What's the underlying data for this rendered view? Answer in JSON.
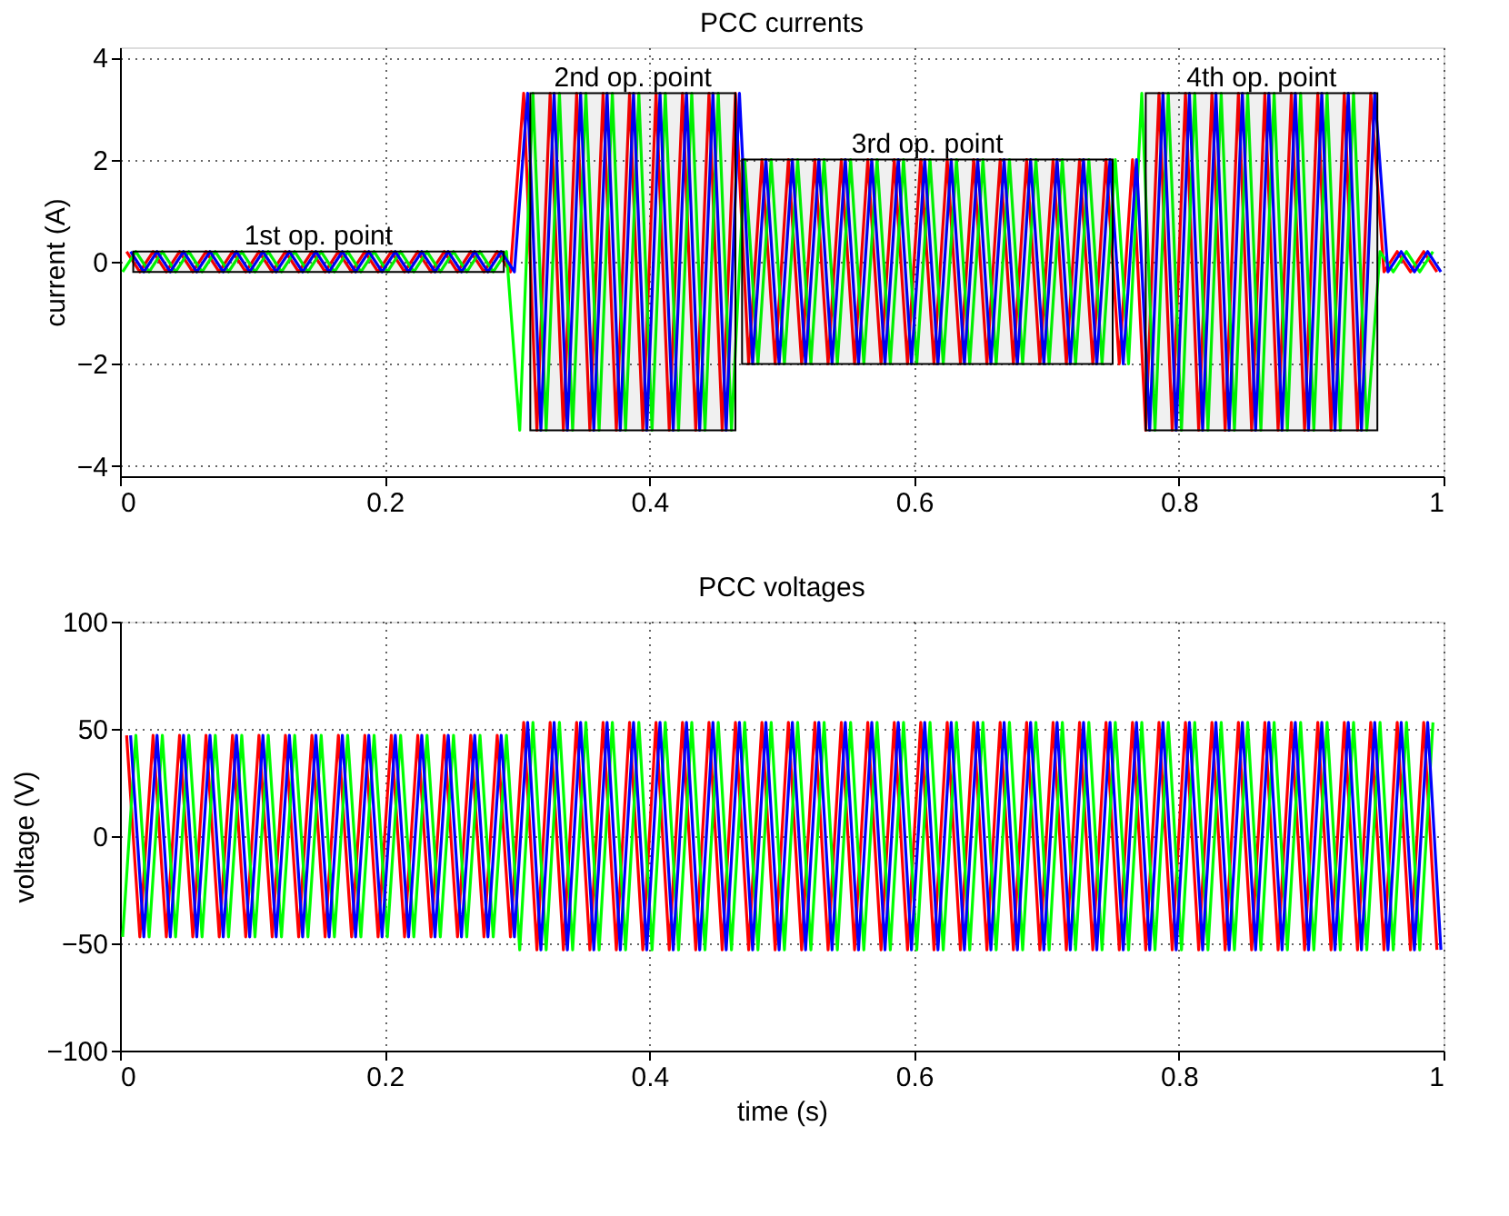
{
  "chart_data": [
    {
      "type": "line",
      "title": "PCC currents",
      "ylabel": "current (A)",
      "xlim": [
        0,
        1
      ],
      "xticks": [
        0,
        0.2,
        0.4,
        0.6,
        0.8,
        1
      ],
      "ylim": [
        -4.2,
        4.2
      ],
      "yticks": [
        -4,
        -2,
        0,
        2,
        4
      ],
      "grid": true,
      "bands": [
        {
          "axis": "x",
          "from": 0.01,
          "to": 0.29,
          "label": "1st op. point"
        },
        {
          "axis": "x",
          "from": 0.31,
          "to": 0.465,
          "label": "2nd op. point"
        },
        {
          "axis": "x",
          "from": 0.47,
          "to": 0.75,
          "label": "3rd op. point"
        },
        {
          "axis": "x",
          "from": 0.775,
          "to": 0.95,
          "label": "4th op. point"
        }
      ],
      "series": [
        {
          "color": "#ff0000",
          "x": [
            0.005,
            0.015,
            0.025,
            0.035,
            0.045,
            0.055,
            0.065,
            0.075,
            0.085,
            0.095,
            0.105,
            0.115,
            0.125,
            0.135,
            0.145,
            0.155,
            0.165,
            0.175,
            0.185,
            0.195,
            0.205,
            0.215,
            0.225,
            0.235,
            0.245,
            0.255,
            0.265,
            0.275,
            0.285,
            0.295,
            0.305,
            0.315,
            0.325,
            0.335,
            0.345,
            0.355,
            0.365,
            0.375,
            0.385,
            0.395,
            0.405,
            0.415,
            0.425,
            0.435,
            0.445,
            0.455,
            0.465,
            0.475,
            0.485,
            0.495,
            0.505,
            0.515,
            0.525,
            0.535,
            0.545,
            0.555,
            0.565,
            0.575,
            0.585,
            0.595,
            0.605,
            0.615,
            0.625,
            0.635,
            0.645,
            0.655,
            0.665,
            0.675,
            0.685,
            0.695,
            0.705,
            0.715,
            0.725,
            0.735,
            0.745,
            0.755,
            0.765,
            0.775,
            0.785,
            0.795,
            0.805,
            0.815,
            0.825,
            0.835,
            0.845,
            0.855,
            0.865,
            0.875,
            0.885,
            0.895,
            0.905,
            0.915,
            0.925,
            0.935,
            0.945,
            0.955,
            0.965,
            0.975,
            0.985,
            0.995
          ],
          "values": [
            0.2,
            -0.2,
            0.2,
            -0.2,
            0.2,
            -0.2,
            0.2,
            -0.2,
            0.2,
            -0.2,
            0.2,
            -0.2,
            0.2,
            -0.2,
            0.2,
            -0.2,
            0.2,
            -0.2,
            0.2,
            -0.2,
            0.2,
            -0.2,
            0.2,
            -0.2,
            0.2,
            -0.2,
            0.2,
            -0.2,
            0.2,
            -0.2,
            3.3,
            -3.3,
            3.3,
            -3.3,
            3.3,
            -3.3,
            3.3,
            -3.3,
            3.3,
            -3.3,
            3.3,
            -3.3,
            3.3,
            -3.3,
            3.3,
            -3.3,
            3.3,
            -2,
            2,
            -2,
            2,
            -2,
            2,
            -2,
            2,
            -2,
            2,
            -2,
            2,
            -2,
            2,
            -2,
            2,
            -2,
            2,
            -2,
            2,
            -2,
            2,
            -2,
            2,
            -2,
            2,
            -2,
            2,
            -2,
            2,
            -3.3,
            3.3,
            -3.3,
            3.3,
            -3.3,
            3.3,
            -3.3,
            3.3,
            -3.3,
            3.3,
            -3.3,
            3.3,
            -3.3,
            3.3,
            -3.3,
            3.3,
            -3.3,
            3.3,
            -0.2,
            0.2,
            -0.2,
            0.2,
            -0.2
          ]
        },
        {
          "color": "#00ff00",
          "x": [
            0.002,
            0.012,
            0.022,
            0.032,
            0.042,
            0.052,
            0.062,
            0.072,
            0.082,
            0.092,
            0.102,
            0.112,
            0.122,
            0.132,
            0.142,
            0.152,
            0.162,
            0.172,
            0.182,
            0.192,
            0.202,
            0.212,
            0.222,
            0.232,
            0.242,
            0.252,
            0.262,
            0.272,
            0.282,
            0.292,
            0.302,
            0.312,
            0.322,
            0.332,
            0.342,
            0.352,
            0.362,
            0.372,
            0.382,
            0.392,
            0.402,
            0.412,
            0.422,
            0.432,
            0.442,
            0.452,
            0.462,
            0.472,
            0.482,
            0.492,
            0.502,
            0.512,
            0.522,
            0.532,
            0.542,
            0.552,
            0.562,
            0.572,
            0.582,
            0.592,
            0.602,
            0.612,
            0.622,
            0.632,
            0.642,
            0.652,
            0.662,
            0.672,
            0.682,
            0.692,
            0.702,
            0.712,
            0.722,
            0.732,
            0.742,
            0.752,
            0.762,
            0.772,
            0.782,
            0.792,
            0.802,
            0.812,
            0.822,
            0.832,
            0.842,
            0.852,
            0.862,
            0.872,
            0.882,
            0.892,
            0.902,
            0.912,
            0.922,
            0.932,
            0.942,
            0.952,
            0.962,
            0.972,
            0.982,
            0.992
          ],
          "values": [
            -0.2,
            0.2,
            -0.2,
            0.2,
            -0.2,
            0.2,
            -0.2,
            0.2,
            -0.2,
            0.2,
            -0.2,
            0.2,
            -0.2,
            0.2,
            -0.2,
            0.2,
            -0.2,
            0.2,
            -0.2,
            0.2,
            -0.2,
            0.2,
            -0.2,
            0.2,
            -0.2,
            0.2,
            -0.2,
            0.2,
            -0.2,
            0.2,
            -3.3,
            3.3,
            -3.3,
            3.3,
            -3.3,
            3.3,
            -3.3,
            3.3,
            -3.3,
            3.3,
            -3.3,
            3.3,
            -3.3,
            3.3,
            -3.3,
            3.3,
            -3.3,
            2,
            -2,
            2,
            -2,
            2,
            -2,
            2,
            -2,
            2,
            -2,
            2,
            -2,
            2,
            -2,
            2,
            -2,
            2,
            -2,
            2,
            -2,
            2,
            -2,
            2,
            -2,
            2,
            -2,
            2,
            -2,
            2,
            -2,
            3.3,
            -3.3,
            3.3,
            -3.3,
            3.3,
            -3.3,
            3.3,
            -3.3,
            3.3,
            -3.3,
            3.3,
            -3.3,
            3.3,
            -3.3,
            3.3,
            -3.3,
            3.3,
            -3.3,
            0.2,
            -0.2,
            0.2,
            -0.2,
            0.2
          ]
        },
        {
          "color": "#0000ff",
          "x": [
            0.008,
            0.018,
            0.028,
            0.038,
            0.048,
            0.058,
            0.068,
            0.078,
            0.088,
            0.098,
            0.108,
            0.118,
            0.128,
            0.138,
            0.148,
            0.158,
            0.168,
            0.178,
            0.188,
            0.198,
            0.208,
            0.218,
            0.228,
            0.238,
            0.248,
            0.258,
            0.268,
            0.278,
            0.288,
            0.298,
            0.308,
            0.318,
            0.328,
            0.338,
            0.348,
            0.358,
            0.368,
            0.378,
            0.388,
            0.398,
            0.408,
            0.418,
            0.428,
            0.438,
            0.448,
            0.458,
            0.468,
            0.478,
            0.488,
            0.498,
            0.508,
            0.518,
            0.528,
            0.538,
            0.548,
            0.558,
            0.568,
            0.578,
            0.588,
            0.598,
            0.608,
            0.618,
            0.628,
            0.638,
            0.648,
            0.658,
            0.668,
            0.678,
            0.688,
            0.698,
            0.708,
            0.718,
            0.728,
            0.738,
            0.748,
            0.758,
            0.768,
            0.778,
            0.788,
            0.798,
            0.808,
            0.818,
            0.828,
            0.838,
            0.848,
            0.858,
            0.868,
            0.878,
            0.888,
            0.898,
            0.908,
            0.918,
            0.928,
            0.938,
            0.948,
            0.958,
            0.968,
            0.978,
            0.988,
            0.998
          ],
          "values": [
            0.2,
            -0.2,
            0.2,
            -0.2,
            0.2,
            -0.2,
            0.2,
            -0.2,
            0.2,
            -0.2,
            0.2,
            -0.2,
            0.2,
            -0.2,
            0.2,
            -0.2,
            0.2,
            -0.2,
            0.2,
            -0.2,
            0.2,
            -0.2,
            0.2,
            -0.2,
            0.2,
            -0.2,
            0.2,
            -0.2,
            0.2,
            -0.2,
            3.3,
            -3.3,
            3.3,
            -3.3,
            3.3,
            -3.3,
            3.3,
            -3.3,
            3.3,
            -3.3,
            3.3,
            -3.3,
            3.3,
            -3.3,
            3.3,
            -3.3,
            3.3,
            -2,
            2,
            -2,
            2,
            -2,
            2,
            -2,
            2,
            -2,
            2,
            -2,
            2,
            -2,
            2,
            -2,
            2,
            -2,
            2,
            -2,
            2,
            -2,
            2,
            -2,
            2,
            -2,
            2,
            -2,
            2,
            -2,
            2,
            -3.3,
            3.3,
            -3.3,
            3.3,
            -3.3,
            3.3,
            -3.3,
            3.3,
            -3.3,
            3.3,
            -3.3,
            3.3,
            -3.3,
            3.3,
            -3.3,
            3.3,
            -3.3,
            3.3,
            -0.2,
            0.2,
            -0.2,
            0.2,
            -0.2
          ]
        }
      ]
    },
    {
      "type": "line",
      "title": "PCC voltages",
      "xlabel": "time (s)",
      "ylabel": "voltage (V)",
      "xlim": [
        0,
        1
      ],
      "xticks": [
        0,
        0.2,
        0.4,
        0.6,
        0.8,
        1
      ],
      "ylim": [
        -100,
        100
      ],
      "yticks": [
        -100,
        -50,
        0,
        50,
        100
      ],
      "grid": true,
      "series": [
        {
          "color": "#ff0000",
          "x": [
            0.005,
            0.015,
            0.025,
            0.035,
            0.045,
            0.055,
            0.065,
            0.075,
            0.085,
            0.095,
            0.105,
            0.115,
            0.125,
            0.135,
            0.145,
            0.155,
            0.165,
            0.175,
            0.185,
            0.195,
            0.205,
            0.215,
            0.225,
            0.235,
            0.245,
            0.255,
            0.265,
            0.275,
            0.285,
            0.295,
            0.305,
            0.315,
            0.325,
            0.335,
            0.345,
            0.355,
            0.365,
            0.375,
            0.385,
            0.395,
            0.405,
            0.415,
            0.425,
            0.435,
            0.445,
            0.455,
            0.465,
            0.475,
            0.485,
            0.495,
            0.505,
            0.515,
            0.525,
            0.535,
            0.545,
            0.555,
            0.565,
            0.575,
            0.585,
            0.595,
            0.605,
            0.615,
            0.625,
            0.635,
            0.645,
            0.655,
            0.665,
            0.675,
            0.685,
            0.695,
            0.705,
            0.715,
            0.725,
            0.735,
            0.745,
            0.755,
            0.765,
            0.775,
            0.785,
            0.795,
            0.805,
            0.815,
            0.825,
            0.835,
            0.845,
            0.855,
            0.865,
            0.875,
            0.885,
            0.895,
            0.905,
            0.915,
            0.925,
            0.935,
            0.945,
            0.955,
            0.965,
            0.975,
            0.985,
            0.995
          ],
          "values": [
            47,
            -47,
            47,
            -47,
            47,
            -47,
            47,
            -47,
            47,
            -47,
            47,
            -47,
            47,
            -47,
            47,
            -47,
            47,
            -47,
            47,
            -47,
            47,
            -47,
            47,
            -47,
            47,
            -47,
            47,
            -47,
            47,
            -47,
            53,
            -53,
            53,
            -53,
            53,
            -53,
            53,
            -53,
            53,
            -53,
            53,
            -53,
            53,
            -53,
            53,
            -53,
            53,
            -53,
            53,
            -53,
            53,
            -53,
            53,
            -53,
            53,
            -53,
            53,
            -53,
            53,
            -53,
            53,
            -53,
            53,
            -53,
            53,
            -53,
            53,
            -53,
            53,
            -53,
            53,
            -53,
            53,
            -53,
            53,
            -53,
            53,
            -53,
            53,
            -53,
            53,
            -53,
            53,
            -53,
            53,
            -53,
            53,
            -53,
            53,
            -53,
            53,
            -53,
            53,
            -53,
            53,
            -53,
            53,
            -53,
            53,
            -53
          ]
        },
        {
          "color": "#00ff00",
          "x": [
            0.002,
            0.012,
            0.022,
            0.032,
            0.042,
            0.052,
            0.062,
            0.072,
            0.082,
            0.092,
            0.102,
            0.112,
            0.122,
            0.132,
            0.142,
            0.152,
            0.162,
            0.172,
            0.182,
            0.192,
            0.202,
            0.212,
            0.222,
            0.232,
            0.242,
            0.252,
            0.262,
            0.272,
            0.282,
            0.292,
            0.302,
            0.312,
            0.322,
            0.332,
            0.342,
            0.352,
            0.362,
            0.372,
            0.382,
            0.392,
            0.402,
            0.412,
            0.422,
            0.432,
            0.442,
            0.452,
            0.462,
            0.472,
            0.482,
            0.492,
            0.502,
            0.512,
            0.522,
            0.532,
            0.542,
            0.552,
            0.562,
            0.572,
            0.582,
            0.592,
            0.602,
            0.612,
            0.622,
            0.632,
            0.642,
            0.652,
            0.662,
            0.672,
            0.682,
            0.692,
            0.702,
            0.712,
            0.722,
            0.732,
            0.742,
            0.752,
            0.762,
            0.772,
            0.782,
            0.792,
            0.802,
            0.812,
            0.822,
            0.832,
            0.842,
            0.852,
            0.862,
            0.872,
            0.882,
            0.892,
            0.902,
            0.912,
            0.922,
            0.932,
            0.942,
            0.952,
            0.962,
            0.972,
            0.982,
            0.992
          ],
          "values": [
            -47,
            47,
            -47,
            47,
            -47,
            47,
            -47,
            47,
            -47,
            47,
            -47,
            47,
            -47,
            47,
            -47,
            47,
            -47,
            47,
            -47,
            47,
            -47,
            47,
            -47,
            47,
            -47,
            47,
            -47,
            47,
            -47,
            47,
            -53,
            53,
            -53,
            53,
            -53,
            53,
            -53,
            53,
            -53,
            53,
            -53,
            53,
            -53,
            53,
            -53,
            53,
            -53,
            53,
            -53,
            53,
            -53,
            53,
            -53,
            53,
            -53,
            53,
            -53,
            53,
            -53,
            53,
            -53,
            53,
            -53,
            53,
            -53,
            53,
            -53,
            53,
            -53,
            53,
            -53,
            53,
            -53,
            53,
            -53,
            53,
            -53,
            53,
            -53,
            53,
            -53,
            53,
            -53,
            53,
            -53,
            53,
            -53,
            53,
            -53,
            53,
            -53,
            53,
            -53,
            53,
            -53,
            53,
            -53,
            53,
            -53,
            53
          ]
        },
        {
          "color": "#0000ff",
          "x": [
            0.008,
            0.018,
            0.028,
            0.038,
            0.048,
            0.058,
            0.068,
            0.078,
            0.088,
            0.098,
            0.108,
            0.118,
            0.128,
            0.138,
            0.148,
            0.158,
            0.168,
            0.178,
            0.188,
            0.198,
            0.208,
            0.218,
            0.228,
            0.238,
            0.248,
            0.258,
            0.268,
            0.278,
            0.288,
            0.298,
            0.308,
            0.318,
            0.328,
            0.338,
            0.348,
            0.358,
            0.368,
            0.378,
            0.388,
            0.398,
            0.408,
            0.418,
            0.428,
            0.438,
            0.448,
            0.458,
            0.468,
            0.478,
            0.488,
            0.498,
            0.508,
            0.518,
            0.528,
            0.538,
            0.548,
            0.558,
            0.568,
            0.578,
            0.588,
            0.598,
            0.608,
            0.618,
            0.628,
            0.638,
            0.648,
            0.658,
            0.668,
            0.678,
            0.688,
            0.698,
            0.708,
            0.718,
            0.728,
            0.738,
            0.748,
            0.758,
            0.768,
            0.778,
            0.788,
            0.798,
            0.808,
            0.818,
            0.828,
            0.838,
            0.848,
            0.858,
            0.868,
            0.878,
            0.888,
            0.898,
            0.908,
            0.918,
            0.928,
            0.938,
            0.948,
            0.958,
            0.968,
            0.978,
            0.988,
            0.998
          ],
          "values": [
            47,
            -47,
            47,
            -47,
            47,
            -47,
            47,
            -47,
            47,
            -47,
            47,
            -47,
            47,
            -47,
            47,
            -47,
            47,
            -47,
            47,
            -47,
            47,
            -47,
            47,
            -47,
            47,
            -47,
            47,
            -47,
            47,
            -47,
            53,
            -53,
            53,
            -53,
            53,
            -53,
            53,
            -53,
            53,
            -53,
            53,
            -53,
            53,
            -53,
            53,
            -53,
            53,
            -53,
            53,
            -53,
            53,
            -53,
            53,
            -53,
            53,
            -53,
            53,
            -53,
            53,
            -53,
            53,
            -53,
            53,
            -53,
            53,
            -53,
            53,
            -53,
            53,
            -53,
            53,
            -53,
            53,
            -53,
            53,
            -53,
            53,
            -53,
            53,
            -53,
            53,
            -53,
            53,
            -53,
            53,
            -53,
            53,
            -53,
            53,
            -53,
            53,
            -53,
            53,
            -53,
            53,
            -53,
            53,
            -53,
            53,
            -53
          ]
        }
      ]
    }
  ]
}
